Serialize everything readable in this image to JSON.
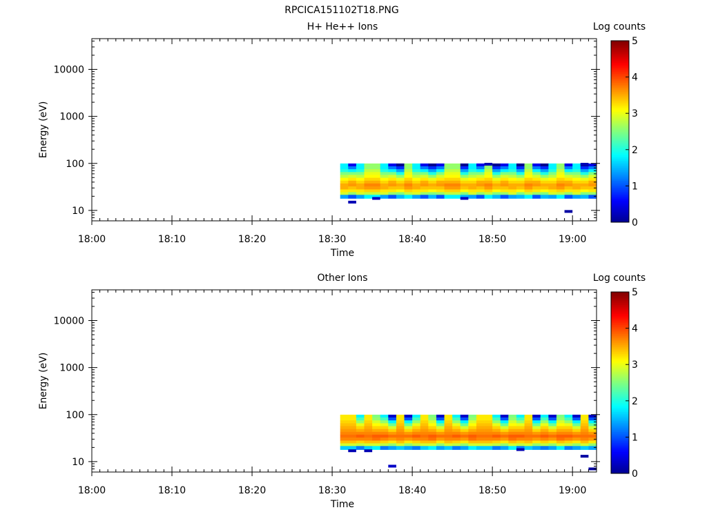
{
  "figure_title": "RPCICA151102T18.PNG",
  "chart_data": [
    {
      "type": "heatmap",
      "title": "H+ He++ Ions",
      "xlabel": "Time",
      "ylabel": "Energy (eV)",
      "x_range": [
        "18:00",
        "19:03"
      ],
      "x_ticks": [
        "18:00",
        "18:10",
        "18:20",
        "18:30",
        "18:40",
        "18:50",
        "19:00"
      ],
      "y_scale": "log",
      "y_range": [
        6,
        45000
      ],
      "y_ticks": [
        "10",
        "100",
        "1000",
        "10000"
      ],
      "colorbar": {
        "label": "Log counts",
        "min": 0,
        "max": 5,
        "ticks": [
          "0",
          "1",
          "2",
          "3",
          "4",
          "5"
        ]
      },
      "data_start": "18:31",
      "data_end": "19:03",
      "time_step_min": 1,
      "energy_bins_ev": [
        93,
        81,
        70,
        61,
        53,
        46,
        40,
        35,
        30,
        26,
        23,
        20
      ],
      "profiles": [
        [
          1.8,
          1.8,
          2.0,
          2.5,
          2.8,
          3.1,
          3.3,
          3.5,
          3.5,
          3.2,
          2.9,
          1.4
        ],
        [
          0.5,
          1.2,
          1.8,
          2.5,
          2.9,
          3.2,
          3.5,
          3.6,
          3.4,
          3.2,
          2.6,
          1.0
        ],
        [
          0.0,
          0.8,
          1.4,
          2.0,
          2.6,
          3.0,
          3.3,
          3.5,
          3.4,
          3.1,
          2.5,
          1.5
        ],
        [
          2.6,
          2.6,
          2.8,
          3.0,
          3.1,
          3.3,
          3.5,
          3.7,
          3.6,
          3.3,
          2.8,
          1.8
        ]
      ],
      "time_profiles": [
        0,
        1,
        0,
        3,
        3,
        0,
        1,
        2,
        3,
        0,
        1,
        2,
        1,
        3,
        3,
        2,
        0,
        1,
        3,
        2,
        1,
        0,
        2,
        3,
        1,
        2,
        0,
        3,
        1,
        0,
        2,
        1
      ],
      "dropouts": [
        {
          "time": "18:32",
          "energy_ev": 15,
          "level": 0.2
        },
        {
          "time": "18:35",
          "energy_ev": 18,
          "level": 0.3
        },
        {
          "time": "18:46",
          "energy_ev": 18,
          "level": 0.3
        },
        {
          "time": "18:59",
          "energy_ev": 9.5,
          "level": 0.1
        },
        {
          "time": "18:49",
          "energy_ev": 96,
          "level": 0.2
        },
        {
          "time": "19:01",
          "energy_ev": 96,
          "level": 0.2
        }
      ]
    },
    {
      "type": "heatmap",
      "title": "Other Ions",
      "xlabel": "Time",
      "ylabel": "Energy (eV)",
      "x_range": [
        "18:00",
        "19:03"
      ],
      "x_ticks": [
        "18:00",
        "18:10",
        "18:20",
        "18:30",
        "18:40",
        "18:50",
        "19:00"
      ],
      "y_scale": "log",
      "y_range": [
        6,
        45000
      ],
      "y_ticks": [
        "10",
        "100",
        "1000",
        "10000"
      ],
      "colorbar": {
        "label": "Log counts",
        "min": 0,
        "max": 5,
        "ticks": [
          "0",
          "1",
          "2",
          "3",
          "4",
          "5"
        ]
      },
      "data_start": "18:31",
      "data_end": "19:03",
      "time_step_min": 1,
      "energy_bins_ev": [
        93,
        81,
        70,
        61,
        53,
        46,
        40,
        35,
        30,
        26,
        23,
        20
      ],
      "profiles": [
        [
          3.2,
          3.2,
          3.3,
          3.4,
          3.5,
          3.6,
          3.7,
          3.8,
          3.7,
          3.4,
          2.9,
          1.6
        ],
        [
          1.8,
          2.2,
          2.6,
          3.0,
          3.3,
          3.5,
          3.7,
          3.9,
          3.7,
          3.3,
          2.8,
          1.2
        ],
        [
          0.3,
          1.0,
          1.8,
          2.4,
          2.9,
          3.3,
          3.6,
          3.8,
          3.6,
          3.2,
          2.6,
          1.4
        ],
        [
          2.5,
          2.6,
          2.9,
          3.1,
          3.3,
          3.5,
          3.7,
          3.9,
          3.8,
          3.4,
          2.9,
          1.8
        ]
      ],
      "time_profiles": [
        0,
        0,
        1,
        0,
        3,
        1,
        2,
        0,
        2,
        1,
        0,
        3,
        2,
        0,
        1,
        2,
        3,
        0,
        0,
        1,
        2,
        3,
        1,
        0,
        2,
        1,
        2,
        3,
        1,
        2,
        0,
        2
      ],
      "dropouts": [
        {
          "time": "18:32",
          "energy_ev": 17,
          "level": 0.2
        },
        {
          "time": "18:34",
          "energy_ev": 17,
          "level": 0.2
        },
        {
          "time": "18:37",
          "energy_ev": 8,
          "level": 0.3
        },
        {
          "time": "19:01",
          "energy_ev": 13,
          "level": 0.1
        },
        {
          "time": "19:02",
          "energy_ev": 7,
          "level": 0.1
        },
        {
          "time": "18:53",
          "energy_ev": 18,
          "level": 0.2
        }
      ]
    }
  ]
}
